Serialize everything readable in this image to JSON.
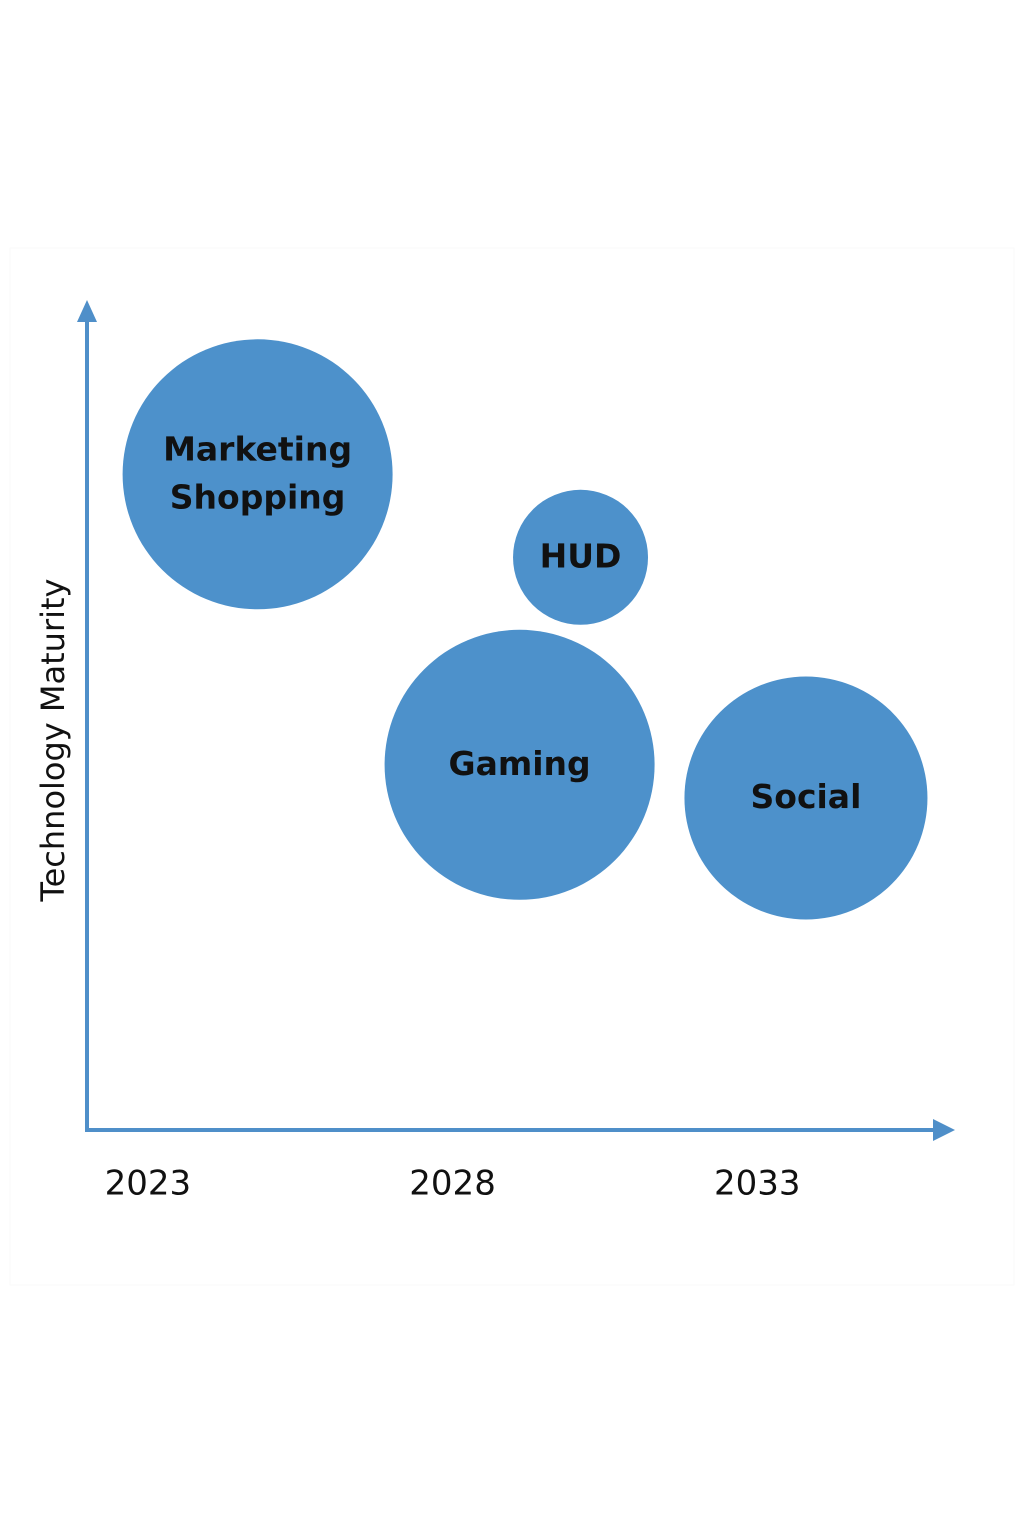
{
  "chart_data": {
    "type": "bubble",
    "y_label": "Technology Maturity",
    "labels": [
      [
        "Marketing",
        "Shopping"
      ],
      [
        "HUD"
      ],
      [
        "Gaming"
      ],
      [
        "Social"
      ]
    ],
    "x": [
      2024.8,
      2030.1,
      2029.1,
      2033.8
    ],
    "y": [
      7.9,
      6.9,
      4.4,
      4.0
    ],
    "sizes": [
      10,
      5,
      10,
      9
    ],
    "color": "#4d91cb",
    "xlim": [
      2022,
      2036
    ],
    "ylim": [
      0,
      10
    ],
    "xticks": [
      2023,
      2028,
      2033
    ]
  }
}
